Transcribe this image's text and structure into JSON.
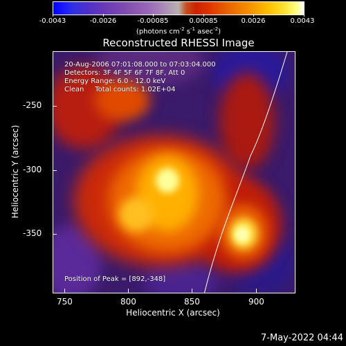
{
  "colorbar": {
    "tick_labels": [
      "-0.0043",
      "-0.0026",
      "-0.00085",
      "0.00085",
      "0.0026",
      "0.0043"
    ],
    "units_text": "(photons cm",
    "units_exp1": "-2",
    "units_mid1": " s",
    "units_exp2": "-1",
    "units_mid2": " asec",
    "units_exp3": "-2",
    "units_end": ")"
  },
  "title": "Reconstructed RHESSI Image",
  "info": {
    "line1": "20-Aug-2006 07:01:08.000 to 07:03:04.000",
    "line2": "Detectors: 3F 4F 5F 6F 7F 8F, Att 0",
    "line3": "Energy Range: 6.0 - 12.0 keV",
    "line4": "Clean     Total counts: 1.02E+04",
    "peak": "Position of Peak = [892,-348]"
  },
  "axes": {
    "x_label": "Heliocentric X (arcsec)",
    "y_label": "Heliocentric Y (arcsec)",
    "x_ticks": [
      "750",
      "800",
      "850",
      "900"
    ],
    "y_ticks": [
      "-250",
      "-300",
      "-350"
    ]
  },
  "timestamp": "7-May-2022 04:44",
  "colors": {
    "background": "#000000",
    "negative": "#0000ff",
    "positive_peak": "#ffffff",
    "mid_positive": "#dd3300"
  }
}
